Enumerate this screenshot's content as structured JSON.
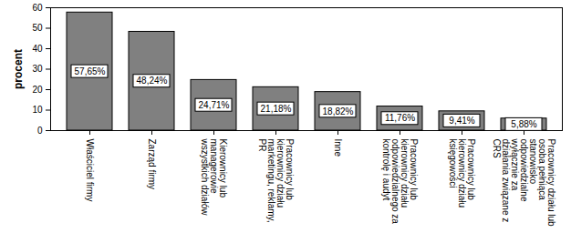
{
  "chart_data": {
    "type": "bar",
    "y_label": "procent",
    "categories": [
      "Właściciel firmy",
      "Zarząd firmy",
      "Kierownicy lub managerowie wszystkich działów",
      "Pracownicy lub kierownicy działu marketingu, reklamy, PR",
      "Inne",
      "Pracownicy lub kierownicy działu odpowiedzialnego za kontrolę i audyt",
      "Pracownicy lub kierownicy działu księgowości",
      "Pracownicy działu lub osoba pełniąca stanowisko odpowiedzialne wyłącznie za działania związane z CRS"
    ],
    "values": [
      57.65,
      48.24,
      24.71,
      21.18,
      18.82,
      11.76,
      9.41,
      5.88
    ],
    "value_labels": [
      "57,65%",
      "48,24%",
      "24,71%",
      "21,18%",
      "18,82%",
      "11,76%",
      "9,41%",
      "5,88%"
    ],
    "data_labels": true,
    "color": "#808080",
    "ylim": [
      0,
      60
    ],
    "yticks": [
      0,
      10,
      20,
      30,
      40,
      50,
      60
    ],
    "grid": false
  }
}
